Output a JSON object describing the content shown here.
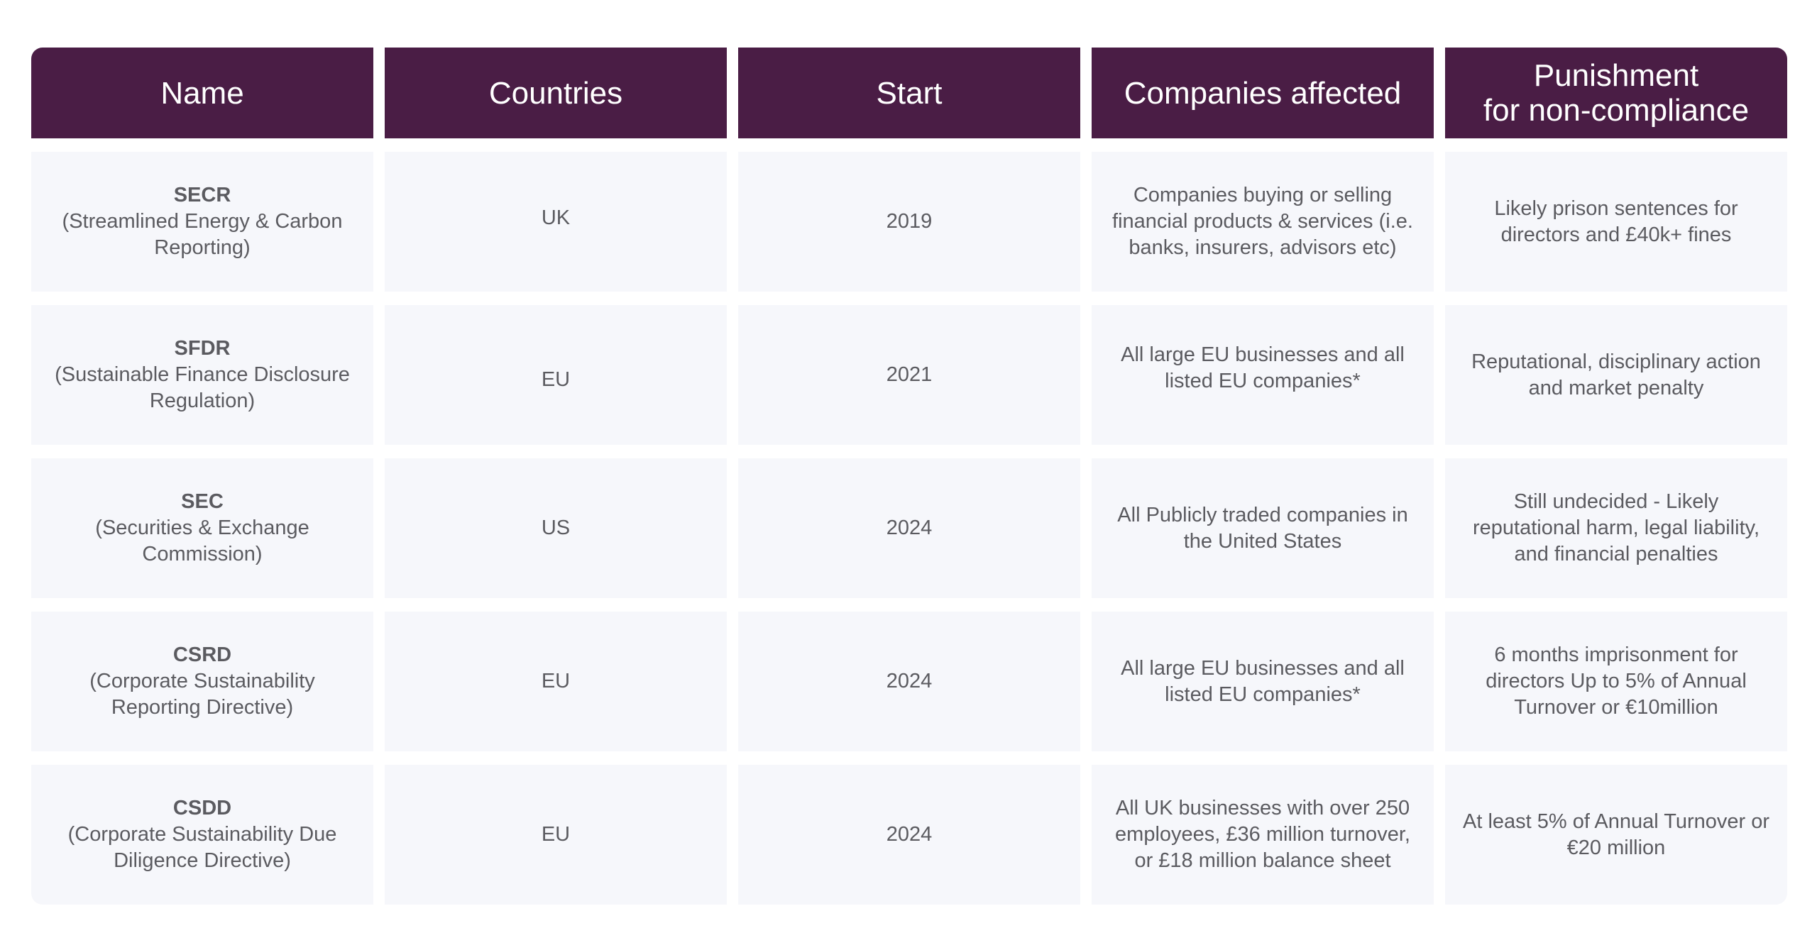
{
  "headers": [
    "Name",
    "Countries",
    "Start",
    "Companies affected",
    "Punishment\nfor non-compliance"
  ],
  "rows": [
    {
      "abbr": "SECR",
      "full": "(Streamlined Energy & Carbon Reporting)",
      "country": "UK",
      "start": "2019",
      "companies": "Companies buying or selling financial products & services (i.e. banks, insurers, advisors etc)",
      "punishment": "Likely prison sentences for directors and £40k+ fines"
    },
    {
      "abbr": "SFDR",
      "full": "(Sustainable Finance Disclosure Regulation)",
      "country": "EU",
      "start": "2021",
      "companies": "All large EU businesses and all listed EU companies*",
      "punishment": "Reputational, disciplinary action  and market penalty"
    },
    {
      "abbr": "SEC",
      "full": "(Securities & Exchange Commission)",
      "country": "US",
      "start": "2024",
      "companies": "All Publicly traded companies in the United States",
      "punishment": "Still undecided - Likely reputational harm, legal liability, and financial penalties"
    },
    {
      "abbr": "CSRD",
      "full": "(Corporate Sustainability Reporting Directive)",
      "country": "EU",
      "start": "2024",
      "companies": "All large EU businesses and all listed EU companies*",
      "punishment": "6 months imprisonment for directors Up to 5% of Annual Turnover or €10million"
    },
    {
      "abbr": "CSDD",
      "full": "(Corporate Sustainability Due Diligence Directive)",
      "country": "EU",
      "start": "2024",
      "companies": "All UK businesses with over 250 employees, £36 million turnover, or £18 million balance sheet",
      "punishment": "At least 5% of Annual Turnover or €20 million"
    }
  ]
}
